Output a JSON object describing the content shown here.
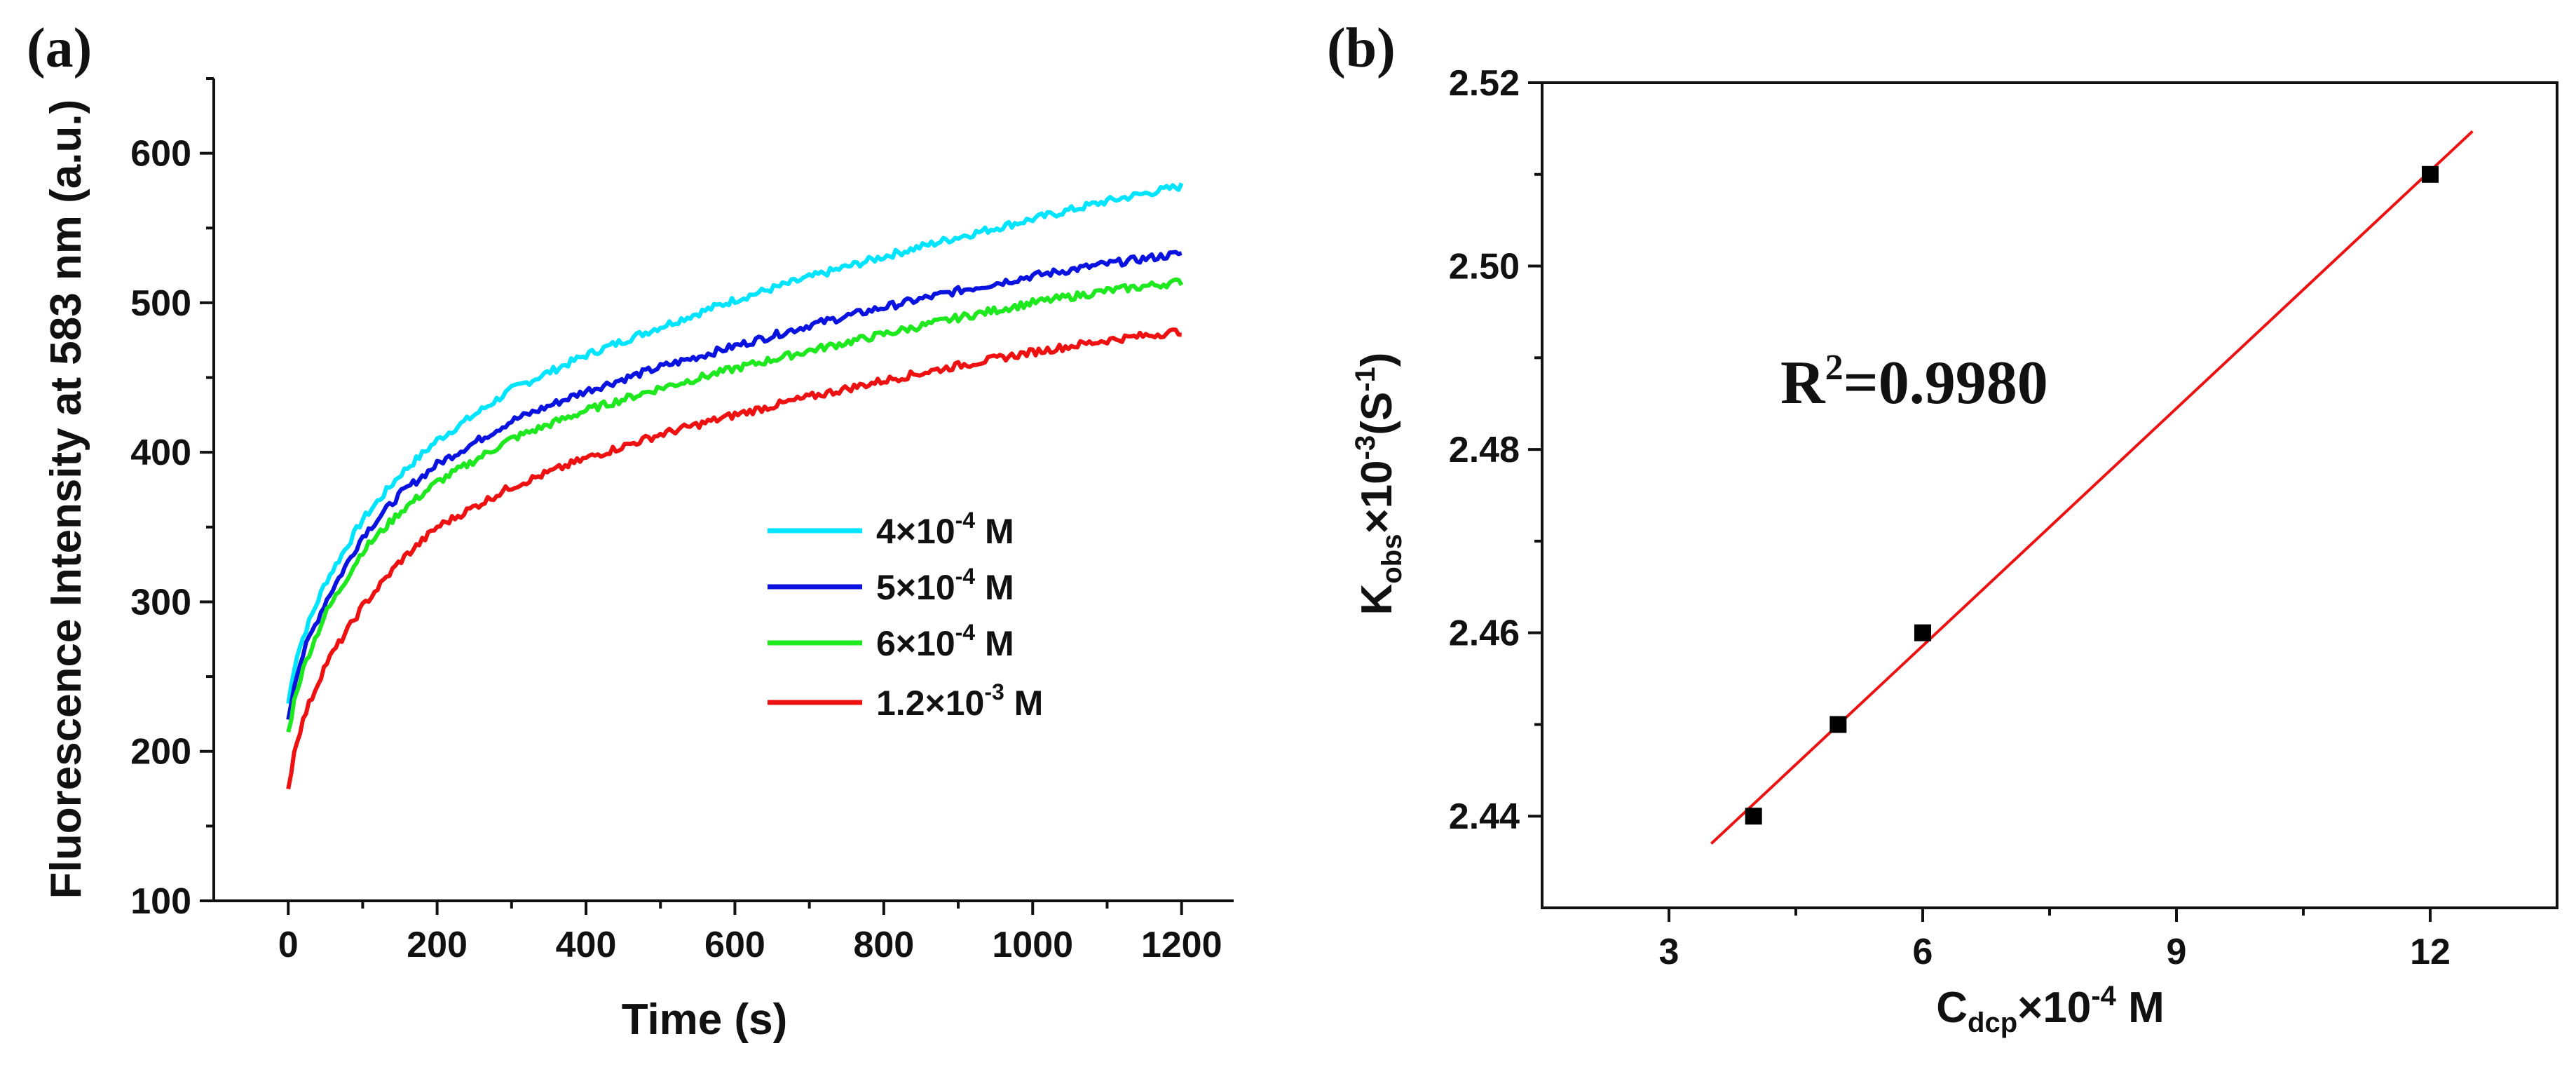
{
  "figure": {
    "panel_a_label": "(a)",
    "panel_b_label": "(b)"
  },
  "chart_data": [
    {
      "type": "line",
      "panel": "(a)",
      "title": "",
      "xlabel": "Time (s)",
      "ylabel": "Fluorescence Intensity at 583 nm (a.u.)",
      "xlim": [
        -100,
        1270
      ],
      "ylim": [
        100,
        650
      ],
      "xticks": [
        0,
        200,
        400,
        600,
        800,
        1000,
        1200
      ],
      "xtick_labels": [
        "0",
        "200",
        "400",
        "600",
        "800",
        "1000",
        "1200"
      ],
      "yticks": [
        100,
        200,
        300,
        400,
        500,
        600
      ],
      "ytick_labels": [
        "100",
        "200",
        "300",
        "400",
        "500",
        "600"
      ],
      "x": [
        0,
        10,
        25,
        50,
        100,
        150,
        200,
        300,
        400,
        500,
        600,
        700,
        800,
        900,
        1000,
        1100,
        1200
      ],
      "series": [
        {
          "name": "4×10-4 M",
          "label_base": "4×10",
          "label_exp": "-4",
          "label_tail": " M",
          "color": "#00e5ff",
          "values": [
            232,
            262,
            283,
            313,
            355,
            385,
            408,
            442,
            465,
            484,
            502,
            517,
            531,
            544,
            556,
            568,
            578
          ]
        },
        {
          "name": "5×10-4 M",
          "label_base": "5×10",
          "label_exp": "-4",
          "label_tail": " M",
          "color": "#0a12e0",
          "values": [
            222,
            250,
            272,
            300,
            344,
            372,
            392,
            421,
            441,
            457,
            471,
            485,
            497,
            508,
            518,
            526,
            533
          ]
        },
        {
          "name": "6×10-4 M",
          "label_base": "6×10",
          "label_exp": "-4",
          "label_tail": " M",
          "color": "#1ee81e",
          "values": [
            212,
            239,
            262,
            292,
            334,
            360,
            380,
            409,
            428,
            443,
            456,
            468,
            479,
            490,
            500,
            508,
            514
          ]
        },
        {
          "name": "1.2×10-3 M",
          "label_base": "1.2×10",
          "label_exp": "-3",
          "label_tail": " M",
          "color": "#ee1111",
          "values": [
            175,
            205,
            228,
            258,
            297,
            327,
            350,
            377,
            396,
            412,
            425,
            437,
            448,
            458,
            467,
            475,
            481
          ]
        }
      ],
      "legend_position": "center-right"
    },
    {
      "type": "scatter",
      "panel": "(b)",
      "title": "",
      "xlabel": "Cdcp×10-4 M",
      "xlabel_main": "C",
      "xlabel_sub": "dcp",
      "xlabel_rest": "×10",
      "xlabel_exp": "-4",
      "xlabel_tail": " M",
      "ylabel": "Kobs×10-3(S-1)",
      "ylabel_main": "K",
      "ylabel_sub": "obs",
      "ylabel_rest": "×10",
      "ylabel_exp": "-3",
      "ylabel_mid": "(S",
      "ylabel_exp2": "-1",
      "ylabel_tail": ")",
      "xlim": [
        1.5,
        13.5
      ],
      "ylim": [
        2.43,
        2.52
      ],
      "xticks": [
        3,
        6,
        9,
        12
      ],
      "xtick_labels": [
        "3",
        "6",
        "9",
        "12"
      ],
      "yticks": [
        2.44,
        2.46,
        2.48,
        2.5,
        2.52
      ],
      "ytick_labels": [
        "2.44",
        "2.46",
        "2.48",
        "2.50",
        "2.52"
      ],
      "points": {
        "x": [
          4,
          5,
          6,
          12
        ],
        "y": [
          2.44,
          2.45,
          2.46,
          2.51
        ]
      },
      "point_color": "#000000",
      "fit_line": {
        "x": [
          3.5,
          12.5
        ],
        "y": [
          2.437,
          2.5147
        ],
        "color": "#ee1111"
      },
      "annotation": {
        "main": "R",
        "exp": "2",
        "rest": "=0.9980"
      }
    }
  ]
}
